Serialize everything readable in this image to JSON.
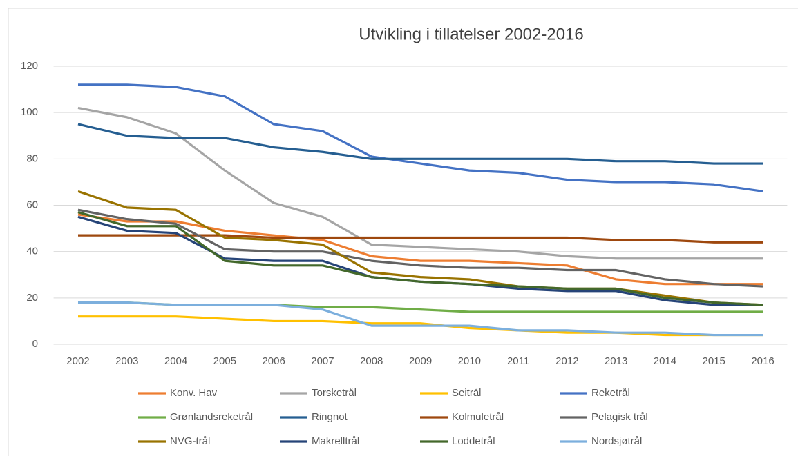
{
  "chart_data": {
    "type": "line",
    "title": "Utvikling i tillatelser 2002-2016",
    "categories": [
      "2002",
      "2003",
      "2004",
      "2005",
      "2006",
      "2007",
      "2008",
      "2009",
      "2010",
      "2011",
      "2012",
      "2013",
      "2014",
      "2015",
      "2016"
    ],
    "ylim": [
      0,
      120
    ],
    "yticks": [
      0,
      20,
      40,
      60,
      80,
      100,
      120
    ],
    "grid": true,
    "series": [
      {
        "name": "Konv. Hav",
        "color": "#ed7d31",
        "values": [
          56,
          53,
          53,
          49,
          47,
          45,
          38,
          36,
          36,
          35,
          34,
          28,
          26,
          26,
          26
        ]
      },
      {
        "name": "Torsketrål",
        "color": "#a5a5a5",
        "values": [
          102,
          98,
          91,
          75,
          61,
          55,
          43,
          42,
          41,
          40,
          38,
          37,
          37,
          37,
          37
        ]
      },
      {
        "name": "Seitrål",
        "color": "#ffc000",
        "values": [
          12,
          12,
          12,
          11,
          10,
          10,
          9,
          9,
          7,
          6,
          5,
          5,
          4,
          4,
          4
        ]
      },
      {
        "name": "Reketrål",
        "color": "#4472c4",
        "values": [
          112,
          112,
          111,
          107,
          95,
          92,
          81,
          78,
          75,
          74,
          71,
          70,
          70,
          69,
          66
        ]
      },
      {
        "name": "Grønlandsreketrål",
        "color": "#70ad47",
        "values": [
          18,
          18,
          17,
          17,
          17,
          16,
          16,
          15,
          14,
          14,
          14,
          14,
          14,
          14,
          14
        ]
      },
      {
        "name": "Ringnot",
        "color": "#255e91",
        "values": [
          95,
          90,
          89,
          89,
          85,
          83,
          80,
          80,
          80,
          80,
          80,
          79,
          79,
          78,
          78
        ]
      },
      {
        "name": "Kolmuletrål",
        "color": "#9e480e",
        "values": [
          47,
          47,
          47,
          47,
          46,
          46,
          46,
          46,
          46,
          46,
          46,
          45,
          45,
          44,
          44
        ]
      },
      {
        "name": "Pelagisk trål",
        "color": "#636363",
        "values": [
          58,
          54,
          52,
          41,
          40,
          40,
          36,
          34,
          33,
          33,
          32,
          32,
          28,
          26,
          25
        ]
      },
      {
        "name": "NVG-trål",
        "color": "#997300",
        "values": [
          66,
          59,
          58,
          46,
          45,
          43,
          31,
          29,
          28,
          25,
          24,
          24,
          21,
          18,
          17
        ]
      },
      {
        "name": "Makrelltrål",
        "color": "#264478",
        "values": [
          55,
          49,
          48,
          37,
          36,
          36,
          29,
          27,
          26,
          24,
          23,
          23,
          19,
          17,
          17
        ]
      },
      {
        "name": "Loddetrål",
        "color": "#43682b",
        "values": [
          57,
          51,
          51,
          36,
          34,
          34,
          29,
          27,
          26,
          25,
          24,
          24,
          20,
          18,
          17
        ]
      },
      {
        "name": "Nordsjøtrål",
        "color": "#7cafdd",
        "values": [
          18,
          18,
          17,
          17,
          17,
          15,
          8,
          8,
          8,
          6,
          6,
          5,
          5,
          4,
          4
        ]
      }
    ]
  }
}
